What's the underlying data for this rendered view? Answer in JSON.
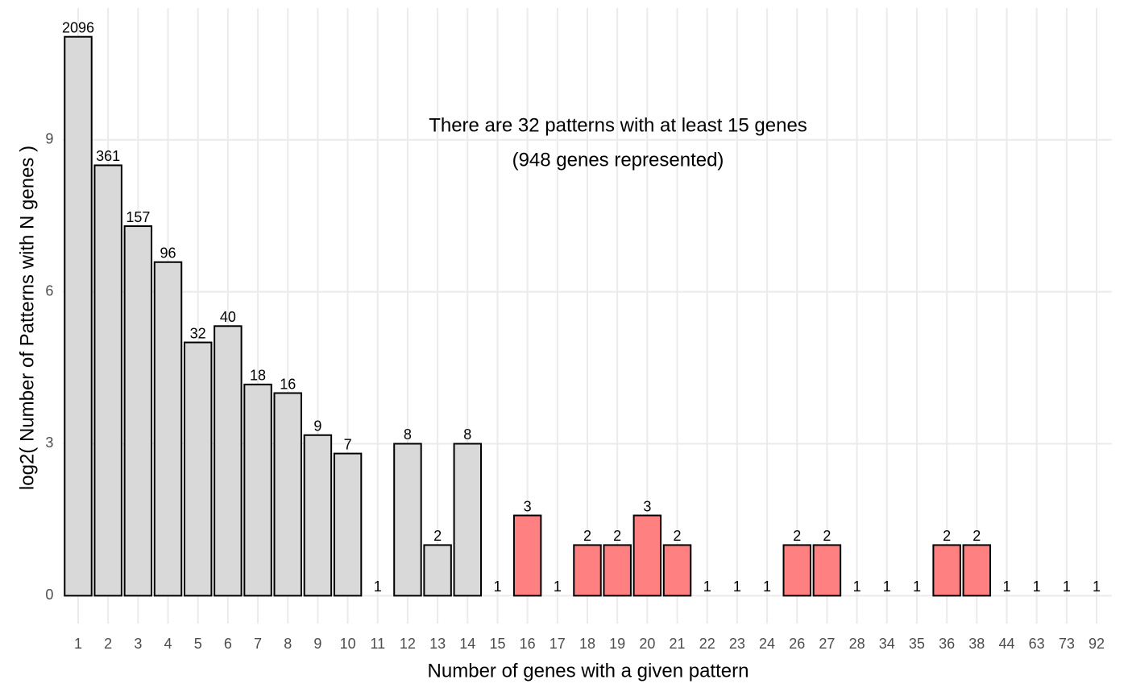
{
  "chart_data": {
    "type": "bar",
    "x_label": "Number of genes with a given pattern",
    "y_label": "log2( Number of Patterns with N genes )",
    "annotation": [
      "There are 32 patterns with at least 15 genes",
      "(948 genes represented)"
    ],
    "categories": [
      "1",
      "2",
      "3",
      "4",
      "5",
      "6",
      "7",
      "8",
      "9",
      "10",
      "11",
      "12",
      "13",
      "14",
      "15",
      "16",
      "17",
      "18",
      "19",
      "20",
      "21",
      "22",
      "23",
      "24",
      "26",
      "27",
      "28",
      "34",
      "35",
      "36",
      "38",
      "44",
      "63",
      "73",
      "92"
    ],
    "values": [
      11.033,
      8.496,
      7.295,
      6.585,
      5,
      5.322,
      4.17,
      4,
      3.17,
      2.807,
      0,
      3,
      1,
      3,
      0,
      1.585,
      0,
      1,
      1,
      1.585,
      1,
      0,
      0,
      0,
      1,
      1,
      0,
      0,
      0,
      1,
      1,
      0,
      0,
      0,
      0
    ],
    "value_labels": [
      "2096",
      "361",
      "157",
      "96",
      "32",
      "40",
      "18",
      "16",
      "9",
      "7",
      "1",
      "8",
      "2",
      "8",
      "1",
      "3",
      "1",
      "2",
      "2",
      "3",
      "2",
      "1",
      "1",
      "1",
      "2",
      "2",
      "1",
      "1",
      "1",
      "2",
      "2",
      "1",
      "1",
      "1",
      "1"
    ],
    "colors": [
      "#d9d9d9",
      "#d9d9d9",
      "#d9d9d9",
      "#d9d9d9",
      "#d9d9d9",
      "#d9d9d9",
      "#d9d9d9",
      "#d9d9d9",
      "#d9d9d9",
      "#d9d9d9",
      "#d9d9d9",
      "#d9d9d9",
      "#d9d9d9",
      "#d9d9d9",
      "#d9d9d9",
      "#ff8080",
      "#d9d9d9",
      "#ff8080",
      "#ff8080",
      "#ff8080",
      "#ff8080",
      "#d9d9d9",
      "#d9d9d9",
      "#d9d9d9",
      "#ff8080",
      "#ff8080",
      "#d9d9d9",
      "#d9d9d9",
      "#d9d9d9",
      "#ff8080",
      "#ff8080",
      "#d9d9d9",
      "#d9d9d9",
      "#d9d9d9",
      "#d9d9d9"
    ],
    "ylim": [
      -0.55,
      11.6
    ],
    "yticks": [
      0,
      3,
      6,
      9
    ],
    "grid": true
  }
}
